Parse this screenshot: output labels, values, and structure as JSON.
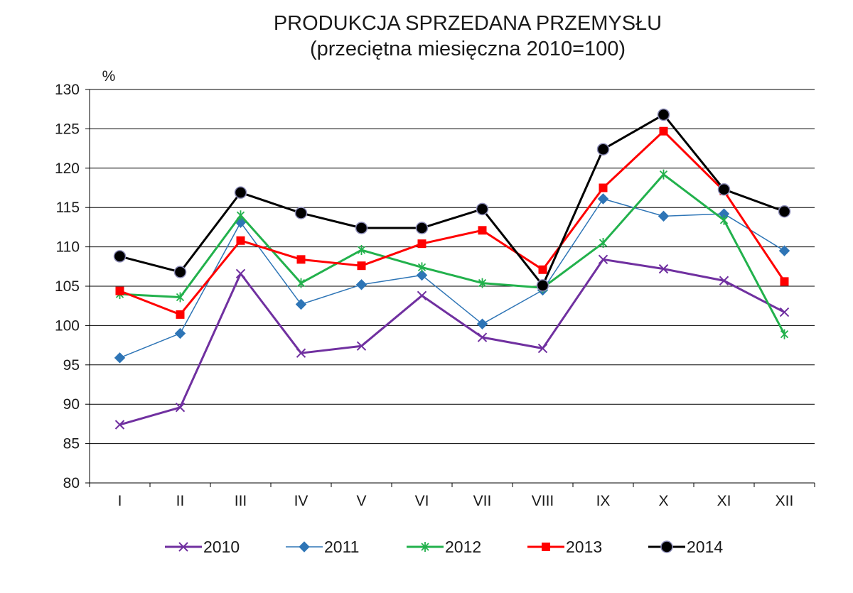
{
  "chart_data": {
    "type": "line",
    "title": "PRODUKCJA  SPRZEDANA  PRZEMYSŁU",
    "subtitle": "(przeciętna miesięczna 2010=100)",
    "ylabel": "%",
    "xlabel": "",
    "ylim": [
      80,
      130
    ],
    "y_ticks": [
      80,
      85,
      90,
      95,
      100,
      105,
      110,
      115,
      120,
      125,
      130
    ],
    "grid": true,
    "legend_position": "bottom",
    "categories": [
      "I",
      "II",
      "III",
      "IV",
      "V",
      "VI",
      "VII",
      "VIII",
      "IX",
      "X",
      "XI",
      "XII"
    ],
    "series": [
      {
        "name": "2010",
        "color": "#7030a0",
        "marker": "x-icon",
        "values": [
          87.4,
          89.6,
          106.6,
          96.5,
          97.4,
          103.8,
          98.5,
          97.1,
          108.4,
          107.2,
          105.7,
          101.7
        ]
      },
      {
        "name": "2011",
        "color": "#2e75b6",
        "marker": "diamond-icon",
        "values": [
          95.9,
          99.0,
          113.1,
          102.7,
          105.2,
          106.4,
          100.2,
          104.5,
          116.1,
          113.9,
          114.2,
          109.5
        ]
      },
      {
        "name": "2012",
        "color": "#22b14c",
        "marker": "asterisk-icon",
        "values": [
          104.0,
          103.6,
          114.0,
          105.4,
          109.6,
          107.4,
          105.4,
          104.8,
          110.5,
          119.2,
          113.4,
          98.9
        ]
      },
      {
        "name": "2013",
        "color": "#ff0000",
        "marker": "square-icon",
        "values": [
          104.4,
          101.4,
          110.8,
          108.4,
          107.6,
          110.4,
          112.1,
          107.1,
          117.5,
          124.7,
          117.1,
          105.6
        ]
      },
      {
        "name": "2014",
        "color": "#000000",
        "marker": "circle-icon",
        "values": [
          108.8,
          106.8,
          116.9,
          114.3,
          112.4,
          112.4,
          114.8,
          105.1,
          122.4,
          126.8,
          117.3,
          114.5
        ]
      }
    ]
  }
}
